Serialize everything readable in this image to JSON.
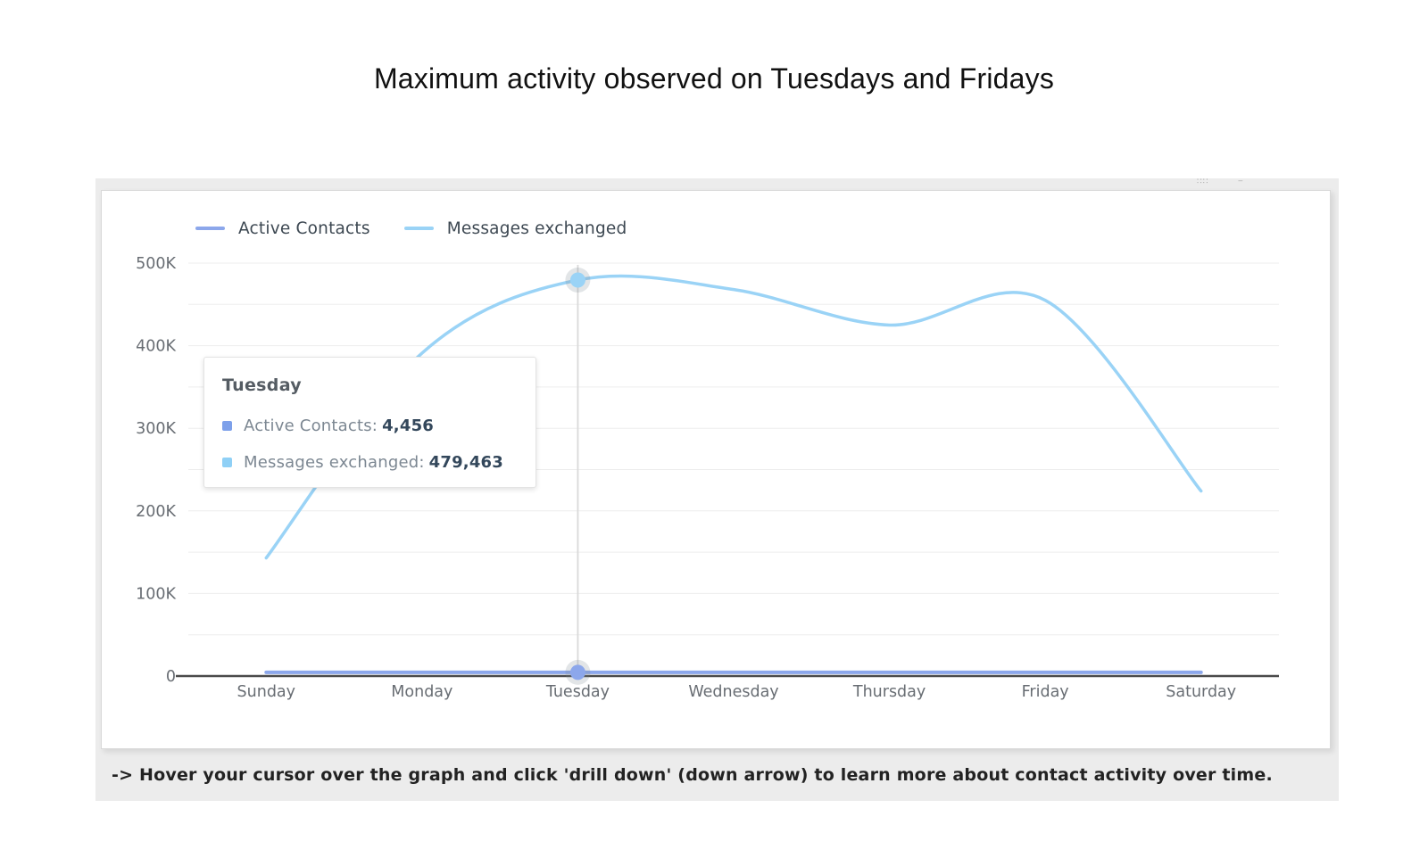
{
  "page": {
    "title": "Maximum activity observed on Tuesdays and Fridays"
  },
  "colors": {
    "active_contacts": "#8CA7EB",
    "messages_exchanged": "#9AD3F6",
    "grid": "#ededed",
    "axis": "#4a4a4a",
    "tick_label": "#686d73",
    "crosshair": "#d9d9d9",
    "container_bg": "#ececec",
    "card_border": "#d8d8d8"
  },
  "chart_data": {
    "type": "line",
    "categories": [
      "Sunday",
      "Monday",
      "Tuesday",
      "Wednesday",
      "Thursday",
      "Friday",
      "Saturday"
    ],
    "series": [
      {
        "name": "Active Contacts",
        "color": "#8CA7EB",
        "values": [
          4456,
          4456,
          4456,
          4456,
          4456,
          4456,
          4456
        ]
      },
      {
        "name": "Messages exchanged",
        "color": "#9AD3F6",
        "values": [
          143000,
          391000,
          479463,
          468000,
          425000,
          455000,
          224000
        ]
      }
    ],
    "ylim": [
      0,
      500000
    ],
    "grid_step": 50000,
    "label_step": 100000,
    "ytick_labels": [
      "0",
      "100K",
      "200K",
      "300K",
      "400K",
      "500K"
    ],
    "xlabel": "",
    "ylabel": "",
    "grid": true,
    "legend_position": "top",
    "highlight_index": 2,
    "highlight_category": "Tuesday"
  },
  "tooltip": {
    "title": "Tuesday",
    "rows": [
      {
        "label": "Active Contacts:",
        "value": "4,456",
        "color": "#7DA0EA"
      },
      {
        "label": "Messages exchanged:",
        "value": "479,463",
        "color": "#8FD0F6"
      }
    ]
  },
  "footer": {
    "instruction": "-> Hover your cursor over the graph and click 'drill down' (down arrow) to learn more about contact activity over time."
  },
  "icons": {
    "drag_handle": "∷∷",
    "menu_dash": "‒"
  }
}
